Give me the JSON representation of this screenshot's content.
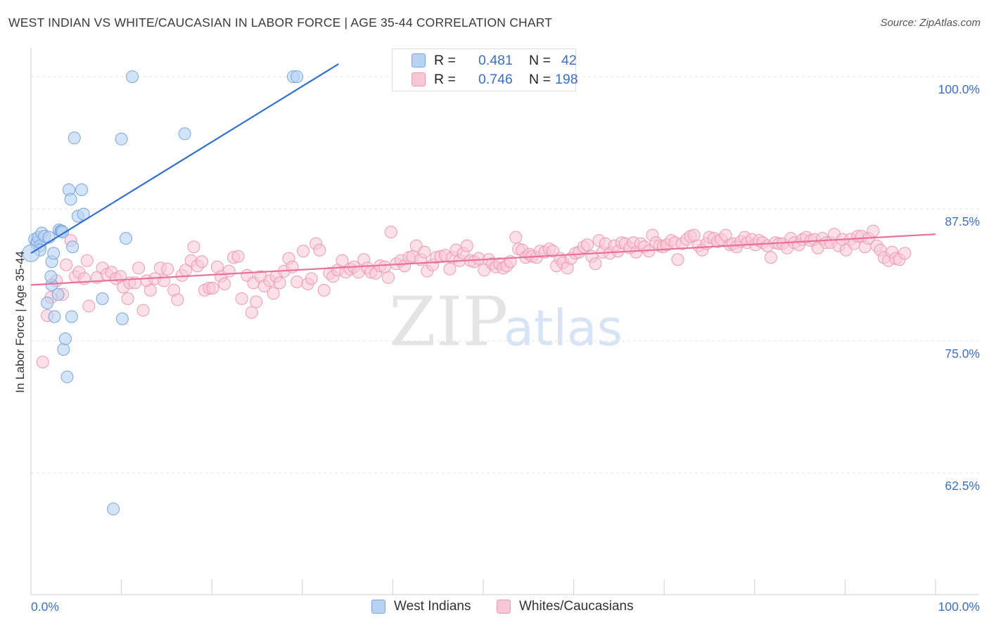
{
  "header": {
    "title": "WEST INDIAN VS WHITE/CAUCASIAN IN LABOR FORCE | AGE 35-44 CORRELATION CHART",
    "source": "Source: ZipAtlas.com"
  },
  "legend": {
    "r_label": "R =",
    "n_label": "N =",
    "series": [
      {
        "r": "0.481",
        "n": "42"
      },
      {
        "r": "0.746",
        "n": "198"
      }
    ]
  },
  "bottom_legend": [
    "West Indians",
    "Whites/Caucasians"
  ],
  "watermark": {
    "zip": "ZIP",
    "atlas": "atlas"
  },
  "colors": {
    "blue_fill": "#b8d2f4",
    "blue_stroke": "#7aa5dc",
    "blue_line": "#2f6fce",
    "pink_fill": "#f9c6d6",
    "pink_stroke": "#eb9ab5",
    "pink_line": "#e8709a",
    "axis_label": "#3a6fc4",
    "grid": "#e3e3e3"
  },
  "chart_data": {
    "type": "scatter",
    "title": "WEST INDIAN VS WHITE/CAUCASIAN IN LABOR FORCE | AGE 35-44 CORRELATION CHART",
    "ylabel": "In Labor Force | Age 35-44",
    "xlabel": "",
    "xlim": [
      0,
      100
    ],
    "ylim": [
      51,
      102
    ],
    "x_tick_labels": [
      "0.0%",
      "100.0%"
    ],
    "y_ticks": [
      100,
      87.5,
      75,
      62.5
    ],
    "y_tick_labels": [
      "100.0%",
      "87.5%",
      "75.0%",
      "62.5%"
    ],
    "grid": true,
    "legend_position": "top-center",
    "series": [
      {
        "name": "West Indians",
        "r": 0.481,
        "n": 42,
        "trend": {
          "x0": 0,
          "y0": 83.3,
          "x1": 34.0,
          "y1": 101.2
        },
        "points": [
          [
            0.4,
            84.6
          ],
          [
            0.6,
            84.2
          ],
          [
            0.7,
            84.4
          ],
          [
            0.8,
            84.8
          ],
          [
            1.0,
            84.0
          ],
          [
            1.2,
            85.2
          ],
          [
            1.0,
            83.6
          ],
          [
            1.5,
            84.9
          ],
          [
            2.0,
            84.8
          ],
          [
            2.3,
            80.3
          ],
          [
            1.8,
            78.6
          ],
          [
            2.2,
            81.1
          ],
          [
            2.3,
            82.5
          ],
          [
            2.5,
            83.3
          ],
          [
            2.6,
            77.3
          ],
          [
            3.0,
            79.4
          ],
          [
            3.1,
            85.5
          ],
          [
            3.3,
            85.4
          ],
          [
            3.4,
            85.4
          ],
          [
            3.5,
            85.3
          ],
          [
            3.6,
            74.2
          ],
          [
            3.8,
            75.2
          ],
          [
            4.0,
            71.6
          ],
          [
            4.2,
            89.3
          ],
          [
            4.4,
            88.4
          ],
          [
            4.5,
            77.3
          ],
          [
            4.6,
            83.9
          ],
          [
            4.8,
            94.2
          ],
          [
            5.2,
            86.8
          ],
          [
            5.6,
            89.3
          ],
          [
            5.8,
            87.0
          ],
          [
            7.9,
            79.0
          ],
          [
            9.1,
            59.1
          ],
          [
            10.0,
            94.1
          ],
          [
            10.1,
            77.1
          ],
          [
            10.5,
            84.7
          ],
          [
            11.2,
            100.0
          ],
          [
            17.0,
            94.6
          ],
          [
            29.0,
            100.0
          ],
          [
            29.4,
            100.0
          ]
        ]
      },
      {
        "name": "Whites/Caucasians",
        "r": 0.746,
        "n": 198,
        "trend": {
          "x0": 0,
          "y0": 80.3,
          "x1": 100.0,
          "y1": 85.1
        },
        "points": [
          [
            1.3,
            73.0
          ],
          [
            1.8,
            77.4
          ],
          [
            2.2,
            79.1
          ],
          [
            2.8,
            80.7
          ],
          [
            3.5,
            79.4
          ],
          [
            3.9,
            82.2
          ],
          [
            4.4,
            84.5
          ],
          [
            4.9,
            81.1
          ],
          [
            5.3,
            81.5
          ],
          [
            5.9,
            80.9
          ],
          [
            6.4,
            78.3
          ],
          [
            6.2,
            82.6
          ],
          [
            7.3,
            81.0
          ],
          [
            7.9,
            81.9
          ],
          [
            8.4,
            81.3
          ],
          [
            8.9,
            81.5
          ],
          [
            9.4,
            80.9
          ],
          [
            9.9,
            81.1
          ],
          [
            10.2,
            80.1
          ],
          [
            10.7,
            79.0
          ],
          [
            10.9,
            80.5
          ],
          [
            11.5,
            80.5
          ],
          [
            11.9,
            81.9
          ],
          [
            12.4,
            77.9
          ],
          [
            12.8,
            80.7
          ],
          [
            13.2,
            79.8
          ],
          [
            13.7,
            80.9
          ],
          [
            14.3,
            81.9
          ],
          [
            14.7,
            80.7
          ],
          [
            15.1,
            81.8
          ],
          [
            15.8,
            79.8
          ],
          [
            16.2,
            78.9
          ],
          [
            16.7,
            81.2
          ],
          [
            17.1,
            81.7
          ],
          [
            17.7,
            82.6
          ],
          [
            18.0,
            83.9
          ],
          [
            18.4,
            82.1
          ],
          [
            18.9,
            82.5
          ],
          [
            19.2,
            79.8
          ],
          [
            19.7,
            80.0
          ],
          [
            20.1,
            80.0
          ],
          [
            20.6,
            82.0
          ],
          [
            21.0,
            81.1
          ],
          [
            21.4,
            80.4
          ],
          [
            21.9,
            81.6
          ],
          [
            22.4,
            82.9
          ],
          [
            22.9,
            83.0
          ],
          [
            23.3,
            79.0
          ],
          [
            23.9,
            81.2
          ],
          [
            24.4,
            77.7
          ],
          [
            24.6,
            80.5
          ],
          [
            24.9,
            78.7
          ],
          [
            25.4,
            81.1
          ],
          [
            25.8,
            80.2
          ],
          [
            26.4,
            80.7
          ],
          [
            26.8,
            79.5
          ],
          [
            27.1,
            81.1
          ],
          [
            27.5,
            80.5
          ],
          [
            28.0,
            81.6
          ],
          [
            28.5,
            82.8
          ],
          [
            28.9,
            82.0
          ],
          [
            29.4,
            80.6
          ],
          [
            30.1,
            83.5
          ],
          [
            30.6,
            80.4
          ],
          [
            31.0,
            80.9
          ],
          [
            31.5,
            84.2
          ],
          [
            31.9,
            83.6
          ],
          [
            32.4,
            79.8
          ],
          [
            33.0,
            81.4
          ],
          [
            33.4,
            81.1
          ],
          [
            33.9,
            81.7
          ],
          [
            34.4,
            82.6
          ],
          [
            34.8,
            81.5
          ],
          [
            35.3,
            81.8
          ],
          [
            35.7,
            82.0
          ],
          [
            36.2,
            81.5
          ],
          [
            36.8,
            82.7
          ],
          [
            37.2,
            81.9
          ],
          [
            37.6,
            81.5
          ],
          [
            38.1,
            81.4
          ],
          [
            38.6,
            82.1
          ],
          [
            39.1,
            82.0
          ],
          [
            39.5,
            81.0
          ],
          [
            39.8,
            85.3
          ],
          [
            40.4,
            82.3
          ],
          [
            40.9,
            82.6
          ],
          [
            41.3,
            82.1
          ],
          [
            41.8,
            82.9
          ],
          [
            42.2,
            83.0
          ],
          [
            42.6,
            84.0
          ],
          [
            43.1,
            82.7
          ],
          [
            43.5,
            83.4
          ],
          [
            43.8,
            81.6
          ],
          [
            44.4,
            82.2
          ],
          [
            44.8,
            82.9
          ],
          [
            45.3,
            83.0
          ],
          [
            45.8,
            83.1
          ],
          [
            46.3,
            81.8
          ],
          [
            46.6,
            82.9
          ],
          [
            47.0,
            83.6
          ],
          [
            47.4,
            82.6
          ],
          [
            47.8,
            83.3
          ],
          [
            48.2,
            84.0
          ],
          [
            48.6,
            82.6
          ],
          [
            49.0,
            82.5
          ],
          [
            49.5,
            82.8
          ],
          [
            50.1,
            81.7
          ],
          [
            50.6,
            82.7
          ],
          [
            51.0,
            82.3
          ],
          [
            51.4,
            82.0
          ],
          [
            51.8,
            82.3
          ],
          [
            52.2,
            81.9
          ],
          [
            52.6,
            82.1
          ],
          [
            53.0,
            82.5
          ],
          [
            53.6,
            84.8
          ],
          [
            53.9,
            83.7
          ],
          [
            54.3,
            83.6
          ],
          [
            54.7,
            82.9
          ],
          [
            55.1,
            83.2
          ],
          [
            55.4,
            83.0
          ],
          [
            55.9,
            82.9
          ],
          [
            56.3,
            83.5
          ],
          [
            56.8,
            83.4
          ],
          [
            57.3,
            83.7
          ],
          [
            57.7,
            83.5
          ],
          [
            58.1,
            82.1
          ],
          [
            58.5,
            82.8
          ],
          [
            58.8,
            82.4
          ],
          [
            59.3,
            81.9
          ],
          [
            59.7,
            82.8
          ],
          [
            60.2,
            83.3
          ],
          [
            60.6,
            83.4
          ],
          [
            61.1,
            83.9
          ],
          [
            61.5,
            84.1
          ],
          [
            62.0,
            83.0
          ],
          [
            62.4,
            82.3
          ],
          [
            62.8,
            84.5
          ],
          [
            63.2,
            83.4
          ],
          [
            63.5,
            84.2
          ],
          [
            64.0,
            83.3
          ],
          [
            64.5,
            84.0
          ],
          [
            64.9,
            83.5
          ],
          [
            65.3,
            84.3
          ],
          [
            65.7,
            84.2
          ],
          [
            66.2,
            83.8
          ],
          [
            66.6,
            84.3
          ],
          [
            66.9,
            83.4
          ],
          [
            67.4,
            84.2
          ],
          [
            67.8,
            83.9
          ],
          [
            68.3,
            83.5
          ],
          [
            68.7,
            85.0
          ],
          [
            69.1,
            84.3
          ],
          [
            69.5,
            84.0
          ],
          [
            69.9,
            83.9
          ],
          [
            70.3,
            84.1
          ],
          [
            70.8,
            84.5
          ],
          [
            71.2,
            84.3
          ],
          [
            71.5,
            82.7
          ],
          [
            72.0,
            84.2
          ],
          [
            72.5,
            84.6
          ],
          [
            72.9,
            84.9
          ],
          [
            73.3,
            85.0
          ],
          [
            73.8,
            84.0
          ],
          [
            74.2,
            83.6
          ],
          [
            74.7,
            84.2
          ],
          [
            75.0,
            84.8
          ],
          [
            75.5,
            84.7
          ],
          [
            75.9,
            84.4
          ],
          [
            76.3,
            84.6
          ],
          [
            76.8,
            85.0
          ],
          [
            77.3,
            84.1
          ],
          [
            77.6,
            84.2
          ],
          [
            78.0,
            83.9
          ],
          [
            78.5,
            84.4
          ],
          [
            78.9,
            84.8
          ],
          [
            79.2,
            84.3
          ],
          [
            79.7,
            84.6
          ],
          [
            80.1,
            84.1
          ],
          [
            80.5,
            84.5
          ],
          [
            80.9,
            84.3
          ],
          [
            81.4,
            84.0
          ],
          [
            81.8,
            82.9
          ],
          [
            82.3,
            84.3
          ],
          [
            82.7,
            84.2
          ],
          [
            83.1,
            84.2
          ],
          [
            83.6,
            83.8
          ],
          [
            84.0,
            84.7
          ],
          [
            84.4,
            84.3
          ],
          [
            84.9,
            84.1
          ],
          [
            85.3,
            84.6
          ],
          [
            85.7,
            84.8
          ],
          [
            86.2,
            84.5
          ],
          [
            86.6,
            84.6
          ],
          [
            87.0,
            83.8
          ],
          [
            87.5,
            84.7
          ],
          [
            87.9,
            84.3
          ],
          [
            88.4,
            84.3
          ],
          [
            88.8,
            85.1
          ],
          [
            89.3,
            84.0
          ],
          [
            89.7,
            84.6
          ],
          [
            90.1,
            83.6
          ],
          [
            90.6,
            84.6
          ],
          [
            91.0,
            84.2
          ],
          [
            91.4,
            84.9
          ],
          [
            91.8,
            84.9
          ],
          [
            92.2,
            83.9
          ],
          [
            92.6,
            84.7
          ],
          [
            93.1,
            85.4
          ],
          [
            93.5,
            84.0
          ],
          [
            93.9,
            83.6
          ],
          [
            94.3,
            82.9
          ],
          [
            94.8,
            82.6
          ],
          [
            95.2,
            83.4
          ],
          [
            95.6,
            82.8
          ],
          [
            96.0,
            82.7
          ],
          [
            96.6,
            83.3
          ]
        ]
      }
    ]
  }
}
